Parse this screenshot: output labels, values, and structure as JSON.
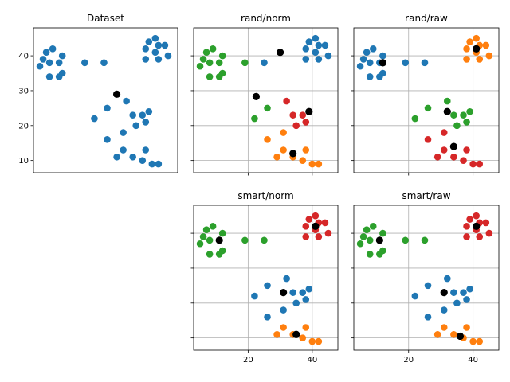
{
  "colors": {
    "blue": "#1f77b4",
    "orange": "#ff7f0e",
    "green": "#2ca02c",
    "red": "#d62728",
    "centroid": "#000000"
  },
  "chart_data": [
    {
      "type": "scatter",
      "title": "Dataset",
      "xlim": [
        3,
        48
      ],
      "ylim": [
        6.5,
        48
      ],
      "grid": false,
      "xticks": [],
      "yticks": [
        10,
        20,
        30,
        40
      ],
      "tick_labels": {
        "x": [],
        "y": [
          "10",
          "20",
          "30",
          "40"
        ]
      },
      "points": [
        {
          "x": 5,
          "y": 37,
          "c": "blue"
        },
        {
          "x": 6,
          "y": 39,
          "c": "blue"
        },
        {
          "x": 7,
          "y": 41,
          "c": "blue"
        },
        {
          "x": 8,
          "y": 38,
          "c": "blue"
        },
        {
          "x": 9,
          "y": 42,
          "c": "blue"
        },
        {
          "x": 11,
          "y": 38,
          "c": "blue"
        },
        {
          "x": 12,
          "y": 40,
          "c": "blue"
        },
        {
          "x": 8,
          "y": 34,
          "c": "blue"
        },
        {
          "x": 11,
          "y": 34,
          "c": "blue"
        },
        {
          "x": 12,
          "y": 35,
          "c": "blue"
        },
        {
          "x": 19,
          "y": 38,
          "c": "blue"
        },
        {
          "x": 25,
          "y": 38,
          "c": "blue"
        },
        {
          "x": 38,
          "y": 39,
          "c": "blue"
        },
        {
          "x": 38,
          "y": 42,
          "c": "blue"
        },
        {
          "x": 39,
          "y": 44,
          "c": "blue"
        },
        {
          "x": 41,
          "y": 45,
          "c": "blue"
        },
        {
          "x": 41,
          "y": 41,
          "c": "blue"
        },
        {
          "x": 42,
          "y": 39,
          "c": "blue"
        },
        {
          "x": 42,
          "y": 43,
          "c": "blue"
        },
        {
          "x": 44,
          "y": 43,
          "c": "blue"
        },
        {
          "x": 45,
          "y": 40,
          "c": "blue"
        },
        {
          "x": 22,
          "y": 22,
          "c": "blue"
        },
        {
          "x": 26,
          "y": 25,
          "c": "blue"
        },
        {
          "x": 32,
          "y": 27,
          "c": "blue"
        },
        {
          "x": 34,
          "y": 23,
          "c": "blue"
        },
        {
          "x": 35,
          "y": 20,
          "c": "blue"
        },
        {
          "x": 37,
          "y": 23,
          "c": "blue"
        },
        {
          "x": 38,
          "y": 21,
          "c": "blue"
        },
        {
          "x": 39,
          "y": 24,
          "c": "blue"
        },
        {
          "x": 31,
          "y": 18,
          "c": "blue"
        },
        {
          "x": 26,
          "y": 16,
          "c": "blue"
        },
        {
          "x": 29,
          "y": 11,
          "c": "blue"
        },
        {
          "x": 31,
          "y": 13,
          "c": "blue"
        },
        {
          "x": 34,
          "y": 11,
          "c": "blue"
        },
        {
          "x": 37,
          "y": 10,
          "c": "blue"
        },
        {
          "x": 38,
          "y": 13,
          "c": "blue"
        },
        {
          "x": 40,
          "y": 9,
          "c": "blue"
        },
        {
          "x": 42,
          "y": 9,
          "c": "blue"
        }
      ],
      "centroids": [
        {
          "x": 29,
          "y": 29
        }
      ]
    },
    {
      "type": "scatter",
      "title": "rand/norm",
      "xlim": [
        3,
        48
      ],
      "ylim": [
        6.5,
        48
      ],
      "grid": true,
      "xticks": [
        20,
        40
      ],
      "yticks": [
        10,
        20,
        30,
        40
      ],
      "tick_labels": {
        "x": [],
        "y": []
      },
      "points": [
        {
          "x": 5,
          "y": 37,
          "c": "green"
        },
        {
          "x": 6,
          "y": 39,
          "c": "green"
        },
        {
          "x": 7,
          "y": 41,
          "c": "green"
        },
        {
          "x": 8,
          "y": 38,
          "c": "green"
        },
        {
          "x": 9,
          "y": 42,
          "c": "green"
        },
        {
          "x": 11,
          "y": 38,
          "c": "green"
        },
        {
          "x": 12,
          "y": 40,
          "c": "green"
        },
        {
          "x": 8,
          "y": 34,
          "c": "green"
        },
        {
          "x": 11,
          "y": 34,
          "c": "green"
        },
        {
          "x": 12,
          "y": 35,
          "c": "green"
        },
        {
          "x": 19,
          "y": 38,
          "c": "green"
        },
        {
          "x": 25,
          "y": 38,
          "c": "blue"
        },
        {
          "x": 38,
          "y": 39,
          "c": "blue"
        },
        {
          "x": 38,
          "y": 42,
          "c": "blue"
        },
        {
          "x": 39,
          "y": 44,
          "c": "blue"
        },
        {
          "x": 41,
          "y": 45,
          "c": "blue"
        },
        {
          "x": 41,
          "y": 41,
          "c": "blue"
        },
        {
          "x": 42,
          "y": 39,
          "c": "blue"
        },
        {
          "x": 42,
          "y": 43,
          "c": "blue"
        },
        {
          "x": 44,
          "y": 43,
          "c": "blue"
        },
        {
          "x": 45,
          "y": 40,
          "c": "blue"
        },
        {
          "x": 22,
          "y": 22,
          "c": "green"
        },
        {
          "x": 26,
          "y": 25,
          "c": "green"
        },
        {
          "x": 32,
          "y": 27,
          "c": "red"
        },
        {
          "x": 34,
          "y": 23,
          "c": "red"
        },
        {
          "x": 35,
          "y": 20,
          "c": "red"
        },
        {
          "x": 37,
          "y": 23,
          "c": "red"
        },
        {
          "x": 38,
          "y": 21,
          "c": "red"
        },
        {
          "x": 39,
          "y": 24,
          "c": "red"
        },
        {
          "x": 31,
          "y": 18,
          "c": "orange"
        },
        {
          "x": 26,
          "y": 16,
          "c": "orange"
        },
        {
          "x": 29,
          "y": 11,
          "c": "orange"
        },
        {
          "x": 31,
          "y": 13,
          "c": "orange"
        },
        {
          "x": 34,
          "y": 11,
          "c": "orange"
        },
        {
          "x": 37,
          "y": 10,
          "c": "orange"
        },
        {
          "x": 38,
          "y": 13,
          "c": "orange"
        },
        {
          "x": 40,
          "y": 9,
          "c": "orange"
        },
        {
          "x": 42,
          "y": 9,
          "c": "orange"
        }
      ],
      "centroids": [
        {
          "x": 30,
          "y": 41
        },
        {
          "x": 22.5,
          "y": 28.3
        },
        {
          "x": 39,
          "y": 24
        },
        {
          "x": 34,
          "y": 12
        }
      ]
    },
    {
      "type": "scatter",
      "title": "rand/raw",
      "xlim": [
        3,
        48
      ],
      "ylim": [
        6.5,
        48
      ],
      "grid": true,
      "xticks": [
        20,
        40
      ],
      "yticks": [
        10,
        20,
        30,
        40
      ],
      "tick_labels": {
        "x": [],
        "y": []
      },
      "points": [
        {
          "x": 5,
          "y": 37,
          "c": "blue"
        },
        {
          "x": 6,
          "y": 39,
          "c": "blue"
        },
        {
          "x": 7,
          "y": 41,
          "c": "blue"
        },
        {
          "x": 8,
          "y": 38,
          "c": "blue"
        },
        {
          "x": 9,
          "y": 42,
          "c": "blue"
        },
        {
          "x": 11,
          "y": 38,
          "c": "blue"
        },
        {
          "x": 12,
          "y": 40,
          "c": "blue"
        },
        {
          "x": 8,
          "y": 34,
          "c": "blue"
        },
        {
          "x": 11,
          "y": 34,
          "c": "blue"
        },
        {
          "x": 12,
          "y": 35,
          "c": "blue"
        },
        {
          "x": 19,
          "y": 38,
          "c": "blue"
        },
        {
          "x": 25,
          "y": 38,
          "c": "blue"
        },
        {
          "x": 38,
          "y": 39,
          "c": "orange"
        },
        {
          "x": 38,
          "y": 42,
          "c": "orange"
        },
        {
          "x": 39,
          "y": 44,
          "c": "orange"
        },
        {
          "x": 41,
          "y": 45,
          "c": "orange"
        },
        {
          "x": 41,
          "y": 41,
          "c": "orange"
        },
        {
          "x": 42,
          "y": 39,
          "c": "orange"
        },
        {
          "x": 42,
          "y": 43,
          "c": "orange"
        },
        {
          "x": 44,
          "y": 43,
          "c": "orange"
        },
        {
          "x": 45,
          "y": 40,
          "c": "orange"
        },
        {
          "x": 22,
          "y": 22,
          "c": "green"
        },
        {
          "x": 26,
          "y": 25,
          "c": "green"
        },
        {
          "x": 32,
          "y": 27,
          "c": "green"
        },
        {
          "x": 34,
          "y": 23,
          "c": "green"
        },
        {
          "x": 35,
          "y": 20,
          "c": "green"
        },
        {
          "x": 37,
          "y": 23,
          "c": "green"
        },
        {
          "x": 38,
          "y": 21,
          "c": "green"
        },
        {
          "x": 39,
          "y": 24,
          "c": "green"
        },
        {
          "x": 31,
          "y": 18,
          "c": "red"
        },
        {
          "x": 26,
          "y": 16,
          "c": "red"
        },
        {
          "x": 29,
          "y": 11,
          "c": "red"
        },
        {
          "x": 31,
          "y": 13,
          "c": "red"
        },
        {
          "x": 34,
          "y": 11,
          "c": "red"
        },
        {
          "x": 37,
          "y": 10,
          "c": "red"
        },
        {
          "x": 38,
          "y": 13,
          "c": "red"
        },
        {
          "x": 40,
          "y": 9,
          "c": "red"
        },
        {
          "x": 42,
          "y": 9,
          "c": "red"
        }
      ],
      "centroids": [
        {
          "x": 12,
          "y": 38
        },
        {
          "x": 41,
          "y": 42
        },
        {
          "x": 32,
          "y": 24
        },
        {
          "x": 34,
          "y": 14
        }
      ]
    },
    {
      "type": "scatter",
      "title": "smart/norm",
      "xlim": [
        3,
        48
      ],
      "ylim": [
        6.5,
        48
      ],
      "grid": true,
      "xticks": [
        20,
        40
      ],
      "yticks": [
        10,
        20,
        30,
        40
      ],
      "tick_labels": {
        "x": [
          "20",
          "40"
        ],
        "y": []
      },
      "points": [
        {
          "x": 5,
          "y": 37,
          "c": "green"
        },
        {
          "x": 6,
          "y": 39,
          "c": "green"
        },
        {
          "x": 7,
          "y": 41,
          "c": "green"
        },
        {
          "x": 8,
          "y": 38,
          "c": "green"
        },
        {
          "x": 9,
          "y": 42,
          "c": "green"
        },
        {
          "x": 11,
          "y": 38,
          "c": "green"
        },
        {
          "x": 12,
          "y": 40,
          "c": "green"
        },
        {
          "x": 8,
          "y": 34,
          "c": "green"
        },
        {
          "x": 11,
          "y": 34,
          "c": "green"
        },
        {
          "x": 12,
          "y": 35,
          "c": "green"
        },
        {
          "x": 19,
          "y": 38,
          "c": "green"
        },
        {
          "x": 25,
          "y": 38,
          "c": "green"
        },
        {
          "x": 38,
          "y": 39,
          "c": "red"
        },
        {
          "x": 38,
          "y": 42,
          "c": "red"
        },
        {
          "x": 39,
          "y": 44,
          "c": "red"
        },
        {
          "x": 41,
          "y": 45,
          "c": "red"
        },
        {
          "x": 41,
          "y": 41,
          "c": "red"
        },
        {
          "x": 42,
          "y": 39,
          "c": "red"
        },
        {
          "x": 42,
          "y": 43,
          "c": "red"
        },
        {
          "x": 44,
          "y": 43,
          "c": "red"
        },
        {
          "x": 45,
          "y": 40,
          "c": "red"
        },
        {
          "x": 22,
          "y": 22,
          "c": "blue"
        },
        {
          "x": 26,
          "y": 25,
          "c": "blue"
        },
        {
          "x": 32,
          "y": 27,
          "c": "blue"
        },
        {
          "x": 34,
          "y": 23,
          "c": "blue"
        },
        {
          "x": 35,
          "y": 20,
          "c": "blue"
        },
        {
          "x": 37,
          "y": 23,
          "c": "blue"
        },
        {
          "x": 38,
          "y": 21,
          "c": "blue"
        },
        {
          "x": 39,
          "y": 24,
          "c": "blue"
        },
        {
          "x": 31,
          "y": 18,
          "c": "blue"
        },
        {
          "x": 26,
          "y": 16,
          "c": "blue"
        },
        {
          "x": 29,
          "y": 11,
          "c": "orange"
        },
        {
          "x": 31,
          "y": 13,
          "c": "orange"
        },
        {
          "x": 34,
          "y": 11,
          "c": "orange"
        },
        {
          "x": 37,
          "y": 10,
          "c": "orange"
        },
        {
          "x": 38,
          "y": 13,
          "c": "orange"
        },
        {
          "x": 40,
          "y": 9,
          "c": "orange"
        },
        {
          "x": 42,
          "y": 9,
          "c": "orange"
        }
      ],
      "centroids": [
        {
          "x": 11,
          "y": 38
        },
        {
          "x": 41,
          "y": 42
        },
        {
          "x": 31,
          "y": 23
        },
        {
          "x": 35,
          "y": 11
        }
      ]
    },
    {
      "type": "scatter",
      "title": "smart/raw",
      "xlim": [
        3,
        48
      ],
      "ylim": [
        6.5,
        48
      ],
      "grid": true,
      "xticks": [
        20,
        40
      ],
      "yticks": [
        10,
        20,
        30,
        40
      ],
      "tick_labels": {
        "x": [
          "20",
          "40"
        ],
        "y": []
      },
      "points": [
        {
          "x": 5,
          "y": 37,
          "c": "green"
        },
        {
          "x": 6,
          "y": 39,
          "c": "green"
        },
        {
          "x": 7,
          "y": 41,
          "c": "green"
        },
        {
          "x": 8,
          "y": 38,
          "c": "green"
        },
        {
          "x": 9,
          "y": 42,
          "c": "green"
        },
        {
          "x": 11,
          "y": 38,
          "c": "green"
        },
        {
          "x": 12,
          "y": 40,
          "c": "green"
        },
        {
          "x": 8,
          "y": 34,
          "c": "green"
        },
        {
          "x": 11,
          "y": 34,
          "c": "green"
        },
        {
          "x": 12,
          "y": 35,
          "c": "green"
        },
        {
          "x": 19,
          "y": 38,
          "c": "green"
        },
        {
          "x": 25,
          "y": 38,
          "c": "green"
        },
        {
          "x": 38,
          "y": 39,
          "c": "red"
        },
        {
          "x": 38,
          "y": 42,
          "c": "red"
        },
        {
          "x": 39,
          "y": 44,
          "c": "red"
        },
        {
          "x": 41,
          "y": 45,
          "c": "red"
        },
        {
          "x": 41,
          "y": 41,
          "c": "red"
        },
        {
          "x": 42,
          "y": 39,
          "c": "red"
        },
        {
          "x": 42,
          "y": 43,
          "c": "red"
        },
        {
          "x": 44,
          "y": 43,
          "c": "red"
        },
        {
          "x": 45,
          "y": 40,
          "c": "red"
        },
        {
          "x": 22,
          "y": 22,
          "c": "blue"
        },
        {
          "x": 26,
          "y": 25,
          "c": "blue"
        },
        {
          "x": 32,
          "y": 27,
          "c": "blue"
        },
        {
          "x": 34,
          "y": 23,
          "c": "blue"
        },
        {
          "x": 35,
          "y": 20,
          "c": "blue"
        },
        {
          "x": 37,
          "y": 23,
          "c": "blue"
        },
        {
          "x": 38,
          "y": 21,
          "c": "blue"
        },
        {
          "x": 39,
          "y": 24,
          "c": "blue"
        },
        {
          "x": 31,
          "y": 18,
          "c": "blue"
        },
        {
          "x": 26,
          "y": 16,
          "c": "blue"
        },
        {
          "x": 29,
          "y": 11,
          "c": "orange"
        },
        {
          "x": 31,
          "y": 13,
          "c": "orange"
        },
        {
          "x": 34,
          "y": 11,
          "c": "orange"
        },
        {
          "x": 37,
          "y": 10,
          "c": "orange"
        },
        {
          "x": 38,
          "y": 13,
          "c": "orange"
        },
        {
          "x": 40,
          "y": 9,
          "c": "orange"
        },
        {
          "x": 42,
          "y": 9,
          "c": "orange"
        }
      ],
      "centroids": [
        {
          "x": 11,
          "y": 38
        },
        {
          "x": 41,
          "y": 42
        },
        {
          "x": 31,
          "y": 23
        },
        {
          "x": 36,
          "y": 10.5
        }
      ]
    }
  ]
}
